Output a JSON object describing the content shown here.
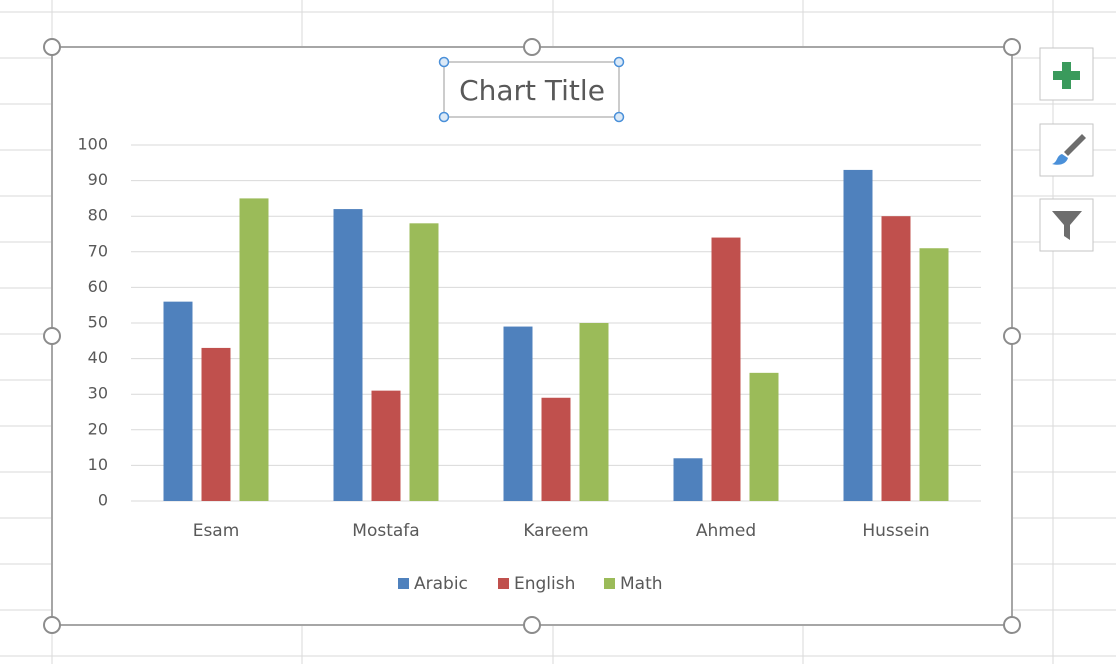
{
  "chart_data": {
    "type": "bar",
    "title": "Chart Title",
    "categories": [
      "Esam",
      "Mostafa",
      "Kareem",
      "Ahmed",
      "Hussein"
    ],
    "series": [
      {
        "name": "Arabic",
        "color": "#4f81bd",
        "values": [
          56,
          82,
          49,
          12,
          93
        ]
      },
      {
        "name": "English",
        "color": "#c0504d",
        "values": [
          43,
          31,
          29,
          74,
          80
        ]
      },
      {
        "name": "Math",
        "color": "#9bbb59",
        "values": [
          85,
          78,
          50,
          36,
          71
        ]
      }
    ],
    "ylim": [
      0,
      100
    ],
    "yticks": [
      0,
      10,
      20,
      30,
      40,
      50,
      60,
      70,
      80,
      90,
      100
    ],
    "grid": true,
    "legend": "bottom"
  }
}
